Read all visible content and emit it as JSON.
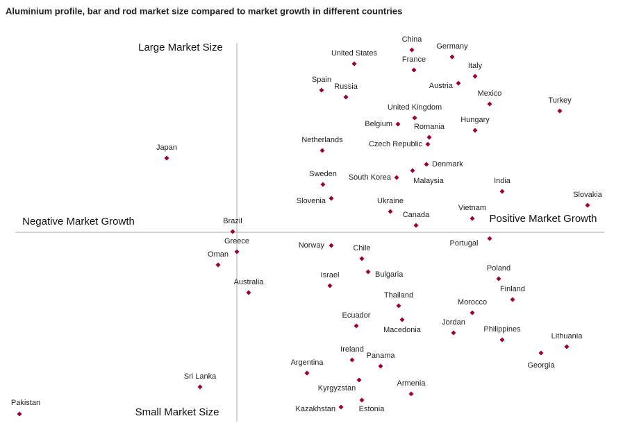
{
  "chart_data": {
    "type": "scatter",
    "title": "Aluminium profile, bar and rod market size compared to market growth in different countries",
    "x_label_negative": "Negative Market Growth",
    "x_label_positive": "Positive Market Growth",
    "y_label_top": "Large Market Size",
    "y_label_bottom": "Small Market Size",
    "color": "#990033",
    "xlim": [
      -3.2,
      5.3
    ],
    "ylim": [
      -2.75,
      2.75
    ],
    "labels": [
      "China",
      "Germany",
      "United States",
      "France",
      "Italy",
      "Austria",
      "Spain",
      "Russia",
      "Mexico",
      "Turkey",
      "United Kingdom",
      "Belgium",
      "Hungary",
      "Romania",
      "Czech Republic",
      "Netherlands",
      "Japan",
      "Denmark",
      "South Korea",
      "Malaysia",
      "Sweden",
      "India",
      "Slovenia",
      "Slovakia",
      "Ukraine",
      "Vietnam",
      "Canada",
      "Brazil",
      "Portugal",
      "Greece",
      "Norway",
      "Chile",
      "Oman",
      "Bulgaria",
      "Poland",
      "Israel",
      "Australia",
      "Finland",
      "Thailand",
      "Morocco",
      "Macedonia",
      "Ecuador",
      "Jordan",
      "Philippines",
      "Lithuania",
      "Georgia",
      "Ireland",
      "Panama",
      "Argentina",
      "Kyrgyzstan",
      "Sri Lanka",
      "Armenia",
      "Estonia",
      "Kazakhstan",
      "Pakistan"
    ],
    "x": [
      2.52,
      3.1,
      1.69,
      2.55,
      3.43,
      3.19,
      1.22,
      1.57,
      3.64,
      4.65,
      2.56,
      2.32,
      3.43,
      2.77,
      2.75,
      1.23,
      -1.01,
      2.73,
      2.3,
      2.53,
      1.24,
      3.82,
      1.36,
      5.05,
      2.21,
      3.39,
      2.58,
      -0.06,
      3.64,
      0.0,
      1.36,
      1.8,
      -0.27,
      1.89,
      3.77,
      1.34,
      0.17,
      3.97,
      2.33,
      3.39,
      2.38,
      1.72,
      3.12,
      3.82,
      4.75,
      4.38,
      1.66,
      2.07,
      1.01,
      1.76,
      -0.53,
      2.51,
      1.8,
      1.5,
      -3.13
    ],
    "values": [
      2.63,
      2.53,
      2.43,
      2.34,
      2.25,
      2.15,
      2.05,
      1.95,
      1.85,
      1.75,
      1.65,
      1.56,
      1.47,
      1.37,
      1.27,
      1.18,
      1.07,
      0.98,
      0.79,
      0.89,
      0.69,
      0.59,
      0.49,
      0.39,
      0.3,
      0.2,
      0.1,
      0.01,
      -0.09,
      -0.28,
      -0.19,
      -0.38,
      -0.47,
      -0.57,
      -0.67,
      -0.77,
      -0.87,
      -0.97,
      -1.06,
      -1.16,
      -1.26,
      -1.35,
      -1.45,
      -1.55,
      -1.65,
      -1.74,
      -1.84,
      -1.93,
      -2.03,
      -2.13,
      -2.23,
      -2.33,
      -2.42,
      -2.52,
      -2.62
    ]
  }
}
